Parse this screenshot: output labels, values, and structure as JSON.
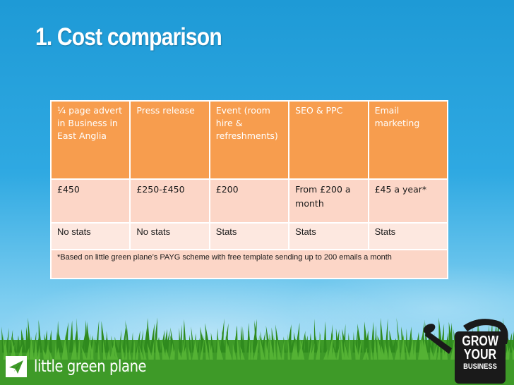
{
  "slide": {
    "title": "1. Cost comparison"
  },
  "table": {
    "headers": [
      "¼ page advert in Business in East Anglia",
      "Press release",
      "Event (room hire & refreshments)",
      "SEO & PPC",
      "Email marketing"
    ],
    "prices": [
      "£450",
      "£250-£450",
      "£200",
      "From £200 a month",
      "£45 a year*"
    ],
    "stats": [
      "No stats",
      "No stats",
      "Stats",
      "Stats",
      "Stats"
    ],
    "footnote": "*Based on little green plane’s PAYG scheme with free template sending up to 200 emails a month"
  },
  "brand": {
    "name": "little green plane",
    "icon": "paper-plane-icon"
  },
  "badge": {
    "line1": "GROW",
    "line2": "YOUR",
    "line3": "BUSINESS",
    "icon": "watering-can-icon"
  },
  "colors": {
    "header_orange": "#f79d4e",
    "row_peach": "#fcd6c7",
    "row_light": "#fde8e0",
    "sky_blue": "#2fa9e2",
    "grass_green": "#3e9a28"
  }
}
